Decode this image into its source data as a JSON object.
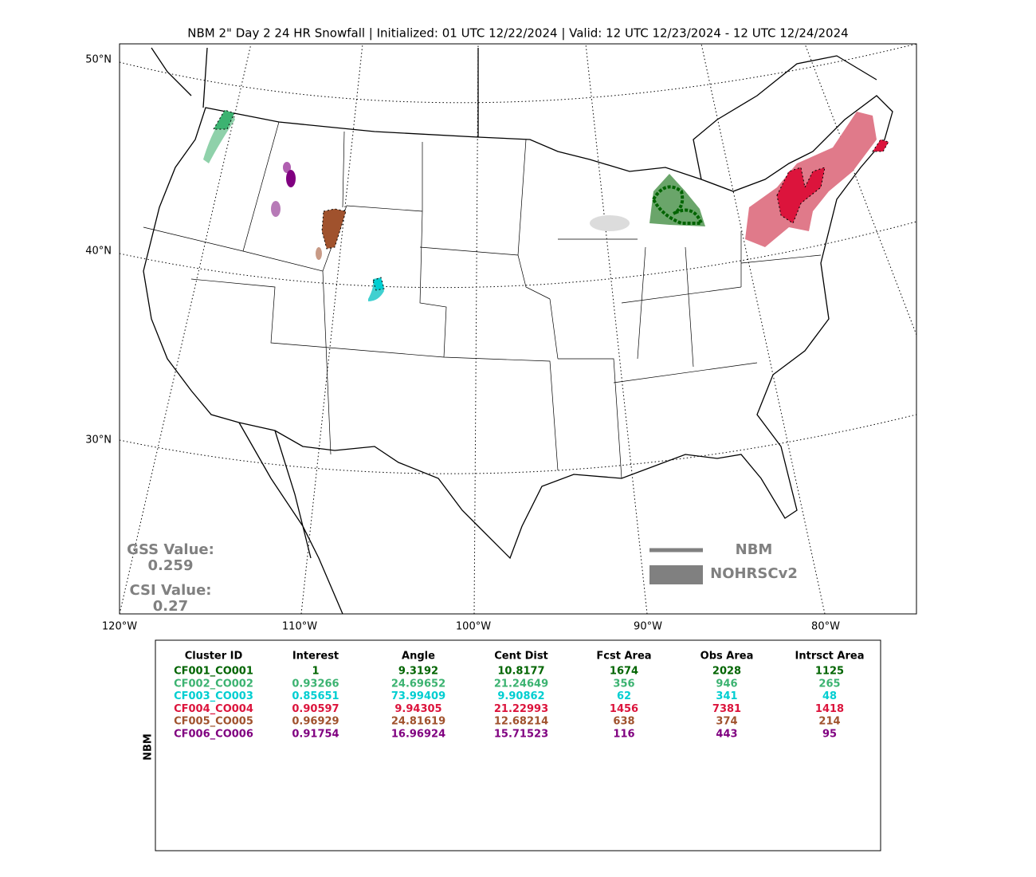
{
  "title": "NBM 2\" Day 2 24 HR Snowfall | Initialized: 01 UTC 12/22/2024 | Valid: 12 UTC 12/23/2024 - 12 UTC 12/24/2024",
  "map": {
    "lat_labels": [
      "50°N",
      "40°N",
      "30°N"
    ],
    "lon_labels": [
      "120°W",
      "110°W",
      "100°W",
      "90°W",
      "80°W"
    ],
    "gss_label": "GSS Value:",
    "gss_value": "0.259",
    "csi_label": "CSI Value:",
    "csi_value": "0.27",
    "legend": {
      "line": "NBM",
      "fill": "NOHRSCv2"
    }
  },
  "table": {
    "side_label": "NBM",
    "columns": [
      "Cluster ID",
      "Interest",
      "Angle",
      "Cent Dist",
      "Fcst Area",
      "Obs Area",
      "Intrsct Area"
    ],
    "row_colors": [
      "#006400",
      "#3cb371",
      "#00ced1",
      "#dc143c",
      "#a0522d",
      "#800080"
    ],
    "rows": [
      [
        "CF001_CO001",
        "1",
        "9.3192",
        "10.8177",
        "1674",
        "2028",
        "1125"
      ],
      [
        "CF002_CO002",
        "0.93266",
        "24.69652",
        "21.24649",
        "356",
        "946",
        "265"
      ],
      [
        "CF003_CO003",
        "0.85651",
        "73.99409",
        "9.90862",
        "62",
        "341",
        "48"
      ],
      [
        "CF004_CO004",
        "0.90597",
        "9.94305",
        "21.22993",
        "1456",
        "7381",
        "1418"
      ],
      [
        "CF005_CO005",
        "0.96929",
        "24.81619",
        "12.68214",
        "638",
        "374",
        "214"
      ],
      [
        "CF006_CO006",
        "0.91754",
        "16.96924",
        "15.71523",
        "116",
        "443",
        "95"
      ]
    ]
  }
}
